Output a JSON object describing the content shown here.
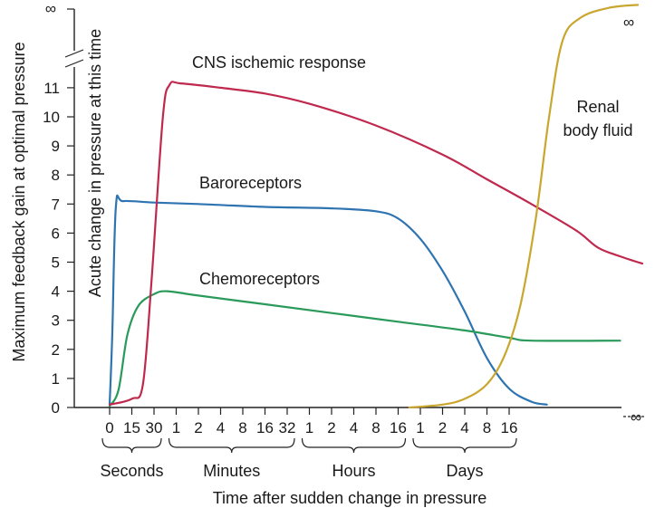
{
  "chart_data": {
    "type": "line",
    "ylabel_outer": "Maximum feedback gain at optimal pressure",
    "ylabel_inner": "Acute change in pressure at this time",
    "xlabel": "Time after sudden change in pressure",
    "y_ticks": [
      "0",
      "1",
      "2",
      "3",
      "4",
      "5",
      "6",
      "7",
      "8",
      "9",
      "10",
      "11"
    ],
    "y_infinity_label": "∞",
    "x_groups": [
      {
        "label": "Seconds",
        "ticks": [
          "0",
          "15",
          "30"
        ]
      },
      {
        "label": "Minutes",
        "ticks": [
          "1",
          "2",
          "4",
          "8",
          "16",
          "32"
        ]
      },
      {
        "label": "Hours",
        "ticks": [
          "1",
          "2",
          "4",
          "8",
          "16"
        ]
      },
      {
        "label": "Days",
        "ticks": [
          "1",
          "2",
          "4",
          "8",
          "16"
        ]
      }
    ],
    "x_end_label": "∞",
    "series": [
      {
        "name": "Baroreceptors",
        "color": "#2e74b0",
        "points": [
          [
            0,
            0.1
          ],
          [
            0.12,
            2.5
          ],
          [
            0.28,
            6.9
          ],
          [
            0.6,
            7.1
          ],
          [
            2,
            7.05
          ],
          [
            4,
            7
          ],
          [
            7,
            6.9
          ],
          [
            10,
            6.85
          ],
          [
            12,
            6.75
          ],
          [
            13,
            6.5
          ],
          [
            14,
            5.8
          ],
          [
            15,
            4.7
          ],
          [
            16,
            3.3
          ],
          [
            17,
            1.7
          ],
          [
            18,
            0.65
          ],
          [
            19,
            0.2
          ],
          [
            19.7,
            0.1
          ]
        ]
      },
      {
        "name": "Chemoreceptors",
        "color": "#2a9a5a",
        "points": [
          [
            0,
            0.05
          ],
          [
            0.4,
            0.6
          ],
          [
            0.8,
            2.5
          ],
          [
            1.3,
            3.5
          ],
          [
            2,
            3.9
          ],
          [
            2.6,
            4
          ],
          [
            4,
            3.85
          ],
          [
            7,
            3.55
          ],
          [
            10,
            3.25
          ],
          [
            13,
            2.95
          ],
          [
            16,
            2.65
          ],
          [
            18,
            2.4
          ],
          [
            19,
            2.3
          ],
          [
            23,
            2.3
          ]
        ]
      },
      {
        "name": "CNS ischemic response",
        "color": "#c0294e",
        "points": [
          [
            0,
            0.1
          ],
          [
            1,
            0.3
          ],
          [
            1.5,
            0.8
          ],
          [
            1.9,
            4.5
          ],
          [
            2.4,
            10
          ],
          [
            2.7,
            11.1
          ],
          [
            3.2,
            11.15
          ],
          [
            5,
            11
          ],
          [
            7,
            10.8
          ],
          [
            9,
            10.45
          ],
          [
            12,
            9.7
          ],
          [
            15,
            8.7
          ],
          [
            17,
            7.85
          ],
          [
            19,
            7
          ],
          [
            21,
            6.1
          ],
          [
            22,
            5.5
          ],
          [
            23,
            5.2
          ],
          [
            24,
            4.95
          ]
        ]
      },
      {
        "name": "Renal body fluid",
        "color": "#c9a62e",
        "points": [
          [
            13.5,
            0
          ],
          [
            15,
            0.1
          ],
          [
            16,
            0.3
          ],
          [
            17,
            0.8
          ],
          [
            17.8,
            1.8
          ],
          [
            18.5,
            3.5
          ],
          [
            19.2,
            6.5
          ],
          [
            19.8,
            10
          ],
          [
            20.4,
            12.6
          ],
          [
            21.2,
            13.4
          ],
          [
            22.5,
            13.75
          ],
          [
            23.8,
            13.85
          ]
        ]
      }
    ]
  }
}
